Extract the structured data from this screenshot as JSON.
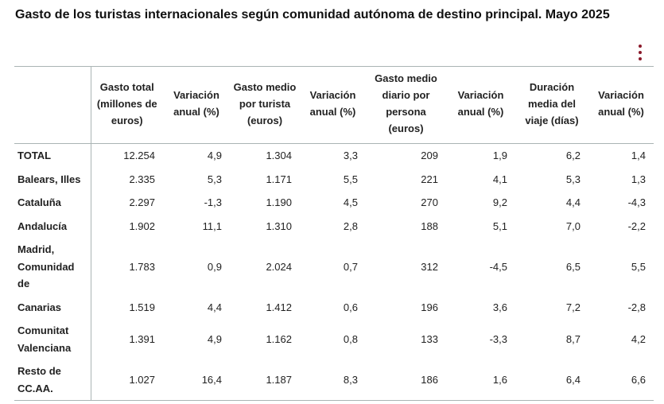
{
  "title": "Gasto de los turistas internacionales según comunidad autónoma de destino principal. Mayo 2025",
  "accent_color": "#8b1a2b",
  "menu_icon": "vertical-ellipsis-icon",
  "table": {
    "headers": [
      "",
      "Gasto total (millones de euros)",
      "Variación anual (%)",
      "Gasto medio por turista (euros)",
      "Variación anual (%)",
      "Gasto medio diario por persona (euros)",
      "Variación anual (%)",
      "Duración media del viaje (días)",
      "Variación anual (%)"
    ],
    "rows": [
      [
        "TOTAL",
        "12.254",
        "4,9",
        "1.304",
        "3,3",
        "209",
        "1,9",
        "6,2",
        "1,4"
      ],
      [
        "Balears, Illes",
        "2.335",
        "5,3",
        "1.171",
        "5,5",
        "221",
        "4,1",
        "5,3",
        "1,3"
      ],
      [
        "Cataluña",
        "2.297",
        "-1,3",
        "1.190",
        "4,5",
        "270",
        "9,2",
        "4,4",
        "-4,3"
      ],
      [
        "Andalucía",
        "1.902",
        "11,1",
        "1.310",
        "2,8",
        "188",
        "5,1",
        "7,0",
        "-2,2"
      ],
      [
        "Madrid, Comunidad de",
        "1.783",
        "0,9",
        "2.024",
        "0,7",
        "312",
        "-4,5",
        "6,5",
        "5,5"
      ],
      [
        "Canarias",
        "1.519",
        "4,4",
        "1.412",
        "0,6",
        "196",
        "3,6",
        "7,2",
        "-2,8"
      ],
      [
        "Comunitat Valenciana",
        "1.391",
        "4,9",
        "1.162",
        "0,8",
        "133",
        "-3,3",
        "8,7",
        "4,2"
      ],
      [
        "Resto de CC.AA.",
        "1.027",
        "16,4",
        "1.187",
        "8,3",
        "186",
        "1,6",
        "6,4",
        "6,6"
      ]
    ]
  }
}
